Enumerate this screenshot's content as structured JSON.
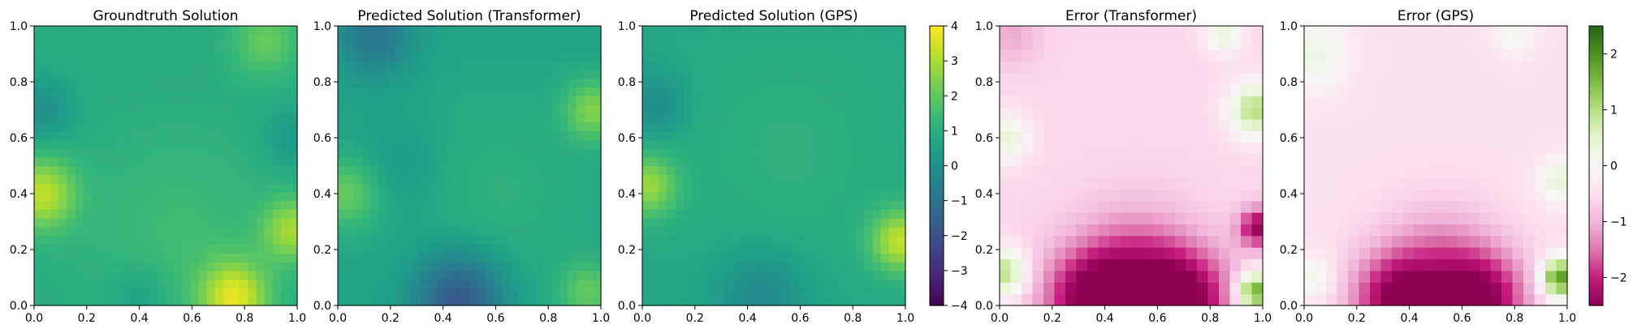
{
  "figure": {
    "panels": [
      {
        "id": "p1",
        "title": "Groundtruth Solution",
        "colormap": "viridis"
      },
      {
        "id": "p2",
        "title": "Predicted Solution (Transformer)",
        "colormap": "viridis"
      },
      {
        "id": "p3",
        "title": "Predicted Solution (GPS)",
        "colormap": "viridis"
      },
      {
        "id": "p4",
        "title": "Error (Transformer)",
        "colormap": "piyg"
      },
      {
        "id": "p5",
        "title": "Error (GPS)",
        "colormap": "piyg"
      }
    ],
    "axis_tick_labels": [
      "0.0",
      "0.2",
      "0.4",
      "0.6",
      "0.8",
      "1.0"
    ],
    "colorbars": [
      {
        "id": "cb-solution",
        "colormap": "viridis",
        "range": [
          -4,
          4
        ],
        "tick_values": [
          4,
          3,
          2,
          1,
          0,
          -1,
          -2,
          -3,
          -4
        ],
        "tick_labels": [
          "4",
          "3",
          "2",
          "1",
          "0",
          "−1",
          "−2",
          "−3",
          "−4"
        ]
      },
      {
        "id": "cb-error",
        "colormap": "piyg",
        "range": [
          -2.5,
          2.5
        ],
        "tick_values": [
          2,
          1,
          0,
          -1,
          -2
        ],
        "tick_labels": [
          "2",
          "1",
          "0",
          "−1",
          "−2"
        ]
      }
    ]
  },
  "chart_data": [
    {
      "type": "heatmap",
      "title": "Groundtruth Solution",
      "xlim": [
        0,
        1
      ],
      "ylim": [
        0,
        1
      ],
      "grid_size": 32,
      "value_range": [
        -4,
        4
      ],
      "colormap": "viridis",
      "base": 0.9,
      "features": [
        {
          "x": 0.03,
          "y": 0.4,
          "amp": 2.3,
          "r": 0.09
        },
        {
          "x": 0.76,
          "y": 0.03,
          "amp": 2.6,
          "r": 0.09
        },
        {
          "x": 0.98,
          "y": 0.27,
          "amp": 1.9,
          "r": 0.08
        },
        {
          "x": 0.88,
          "y": 0.95,
          "amp": 1.2,
          "r": 0.09
        },
        {
          "x": 0.55,
          "y": 0.25,
          "amp": 0.6,
          "r": 0.25
        },
        {
          "x": 0.04,
          "y": 0.7,
          "amp": -0.9,
          "r": 0.08
        },
        {
          "x": 0.4,
          "y": 0.04,
          "amp": -0.6,
          "r": 0.08
        },
        {
          "x": 0.98,
          "y": 0.6,
          "amp": -0.6,
          "r": 0.08
        }
      ]
    },
    {
      "type": "heatmap",
      "title": "Predicted Solution (Transformer)",
      "xlim": [
        0,
        1
      ],
      "ylim": [
        0,
        1
      ],
      "grid_size": 32,
      "value_range": [
        -4,
        4
      ],
      "colormap": "viridis",
      "base": 0.6,
      "features": [
        {
          "x": 0.46,
          "y": 0.02,
          "amp": -2.5,
          "r": 0.12
        },
        {
          "x": 0.14,
          "y": 0.97,
          "amp": -1.5,
          "r": 0.1
        },
        {
          "x": 0.03,
          "y": 0.4,
          "amp": 1.5,
          "r": 0.09
        },
        {
          "x": 0.97,
          "y": 0.7,
          "amp": 1.8,
          "r": 0.08
        },
        {
          "x": 0.95,
          "y": 0.05,
          "amp": 1.4,
          "r": 0.08
        },
        {
          "x": 0.6,
          "y": 0.4,
          "amp": 0.5,
          "r": 0.25
        },
        {
          "x": 0.25,
          "y": 0.5,
          "amp": -0.4,
          "r": 0.12
        }
      ]
    },
    {
      "type": "heatmap",
      "title": "Predicted Solution (GPS)",
      "xlim": [
        0,
        1
      ],
      "ylim": [
        0,
        1
      ],
      "grid_size": 32,
      "value_range": [
        -4,
        4
      ],
      "colormap": "viridis",
      "base": 0.7,
      "features": [
        {
          "x": 0.02,
          "y": 0.43,
          "amp": 2.0,
          "r": 0.08
        },
        {
          "x": 0.98,
          "y": 0.23,
          "amp": 2.5,
          "r": 0.08
        },
        {
          "x": 0.05,
          "y": 0.72,
          "amp": -0.9,
          "r": 0.08
        },
        {
          "x": 0.45,
          "y": 0.03,
          "amp": -1.0,
          "r": 0.12
        },
        {
          "x": 0.55,
          "y": 0.55,
          "amp": 0.4,
          "r": 0.3
        }
      ]
    },
    {
      "type": "heatmap",
      "title": "Error (Transformer)",
      "xlim": [
        0,
        1
      ],
      "ylim": [
        0,
        1
      ],
      "grid_size": 24,
      "value_range": [
        -2.5,
        2.5
      ],
      "colormap": "piyg",
      "base": -0.6,
      "features": [
        {
          "x": 0.35,
          "y": 0.02,
          "amp": -2.0,
          "r": 0.13
        },
        {
          "x": 0.7,
          "y": 0.02,
          "amp": -2.0,
          "r": 0.13
        },
        {
          "x": 0.52,
          "y": 0.15,
          "amp": -1.0,
          "r": 0.14
        },
        {
          "x": 0.98,
          "y": 0.28,
          "amp": -1.8,
          "r": 0.05
        },
        {
          "x": 0.97,
          "y": 0.05,
          "amp": 2.4,
          "r": 0.05
        },
        {
          "x": 0.02,
          "y": 0.12,
          "amp": 1.6,
          "r": 0.06
        },
        {
          "x": 0.97,
          "y": 0.7,
          "amp": 1.6,
          "r": 0.07
        },
        {
          "x": 0.03,
          "y": 0.6,
          "amp": 1.0,
          "r": 0.06
        },
        {
          "x": 0.85,
          "y": 0.97,
          "amp": 1.0,
          "r": 0.05
        },
        {
          "x": 0.05,
          "y": 0.97,
          "amp": -0.5,
          "r": 0.07
        }
      ]
    },
    {
      "type": "heatmap",
      "title": "Error (GPS)",
      "xlim": [
        0,
        1
      ],
      "ylim": [
        0,
        1
      ],
      "grid_size": 24,
      "value_range": [
        -2.5,
        2.5
      ],
      "colormap": "piyg",
      "base": -0.5,
      "features": [
        {
          "x": 0.35,
          "y": 0.02,
          "amp": -1.9,
          "r": 0.12
        },
        {
          "x": 0.68,
          "y": 0.02,
          "amp": -1.9,
          "r": 0.12
        },
        {
          "x": 0.52,
          "y": 0.15,
          "amp": -0.9,
          "r": 0.14
        },
        {
          "x": 0.97,
          "y": 0.1,
          "amp": 2.4,
          "r": 0.05
        },
        {
          "x": 0.03,
          "y": 0.9,
          "amp": 0.8,
          "r": 0.1
        },
        {
          "x": 0.97,
          "y": 0.45,
          "amp": 0.9,
          "r": 0.06
        },
        {
          "x": 0.8,
          "y": 0.97,
          "amp": 0.6,
          "r": 0.06
        },
        {
          "x": 0.03,
          "y": 0.1,
          "amp": 0.7,
          "r": 0.06
        }
      ]
    }
  ]
}
